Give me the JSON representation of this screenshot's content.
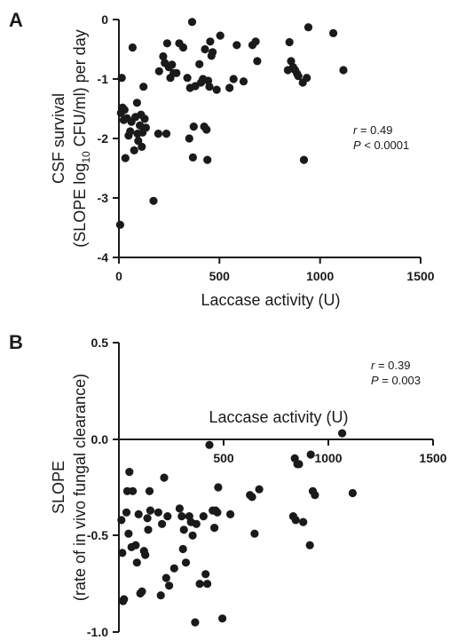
{
  "chart_data": [
    {
      "panel": "A",
      "type": "scatter",
      "xlabel": "Laccase activity (U)",
      "ylabel_line1": "CSF survival",
      "ylabel_line2_pre": "(SLOPE log",
      "ylabel_line2_sub": "10",
      "ylabel_line2_post": " CFU/ml) per day",
      "xlim": [
        0,
        1500
      ],
      "ylim": [
        -4,
        0
      ],
      "xticks": [
        "0",
        "500",
        "1000",
        "1500"
      ],
      "yticks": [
        "0",
        "-1",
        "-2",
        "-3",
        "-4"
      ],
      "stat_r_symbol": "r",
      "stat_r_value": " = 0.49",
      "stat_p_symbol": "P",
      "stat_p_value": " < 0.0001",
      "points": [
        [
          6,
          -3.45
        ],
        [
          10,
          -1.57
        ],
        [
          14,
          -0.98
        ],
        [
          18,
          -1.48
        ],
        [
          24,
          -1.69
        ],
        [
          28,
          -1.52
        ],
        [
          32,
          -2.33
        ],
        [
          40,
          -1.66
        ],
        [
          48,
          -1.95
        ],
        [
          56,
          -1.88
        ],
        [
          62,
          -1.72
        ],
        [
          68,
          -0.47
        ],
        [
          76,
          -2.2
        ],
        [
          82,
          -1.64
        ],
        [
          90,
          -1.4
        ],
        [
          92,
          -1.92
        ],
        [
          96,
          -2.04
        ],
        [
          104,
          -1.78
        ],
        [
          110,
          -1.6
        ],
        [
          114,
          -2.14
        ],
        [
          118,
          -1.9
        ],
        [
          122,
          -1.13
        ],
        [
          128,
          -1.67
        ],
        [
          134,
          -1.82
        ],
        [
          172,
          -3.05
        ],
        [
          196,
          -1.92
        ],
        [
          200,
          -0.87
        ],
        [
          220,
          -0.62
        ],
        [
          228,
          -0.73
        ],
        [
          236,
          -1.92
        ],
        [
          240,
          -0.4
        ],
        [
          248,
          -0.8
        ],
        [
          256,
          -0.98
        ],
        [
          264,
          -0.76
        ],
        [
          272,
          -0.9
        ],
        [
          286,
          -0.9
        ],
        [
          300,
          -0.4
        ],
        [
          320,
          -0.47
        ],
        [
          340,
          -0.98
        ],
        [
          350,
          -2.0
        ],
        [
          354,
          -1.15
        ],
        [
          364,
          -0.04
        ],
        [
          368,
          -2.32
        ],
        [
          372,
          -1.8
        ],
        [
          380,
          -1.12
        ],
        [
          400,
          -0.75
        ],
        [
          408,
          -1.06
        ],
        [
          418,
          -1.0
        ],
        [
          424,
          -1.8
        ],
        [
          428,
          -0.5
        ],
        [
          436,
          -1.85
        ],
        [
          440,
          -2.36
        ],
        [
          444,
          -1.03
        ],
        [
          450,
          -1.13
        ],
        [
          454,
          -0.37
        ],
        [
          460,
          -0.61
        ],
        [
          466,
          -0.55
        ],
        [
          486,
          -1.18
        ],
        [
          504,
          -0.27
        ],
        [
          550,
          -1.15
        ],
        [
          570,
          -1.0
        ],
        [
          586,
          -0.43
        ],
        [
          620,
          -1.04
        ],
        [
          664,
          -0.43
        ],
        [
          680,
          -0.37
        ],
        [
          688,
          -0.7
        ],
        [
          840,
          -0.85
        ],
        [
          848,
          -0.38
        ],
        [
          856,
          -0.7
        ],
        [
          866,
          -0.8
        ],
        [
          876,
          -0.85
        ],
        [
          886,
          -0.91
        ],
        [
          892,
          -0.95
        ],
        [
          914,
          -1.06
        ],
        [
          920,
          -2.36
        ],
        [
          934,
          -0.98
        ],
        [
          942,
          -0.13
        ],
        [
          1066,
          -0.23
        ],
        [
          1116,
          -0.85
        ]
      ]
    },
    {
      "panel": "B",
      "type": "scatter",
      "xlabel": "Laccase activity (U)",
      "ylabel_line1": "SLOPE",
      "ylabel_line2": "(rate of in vivo fungal clearance)",
      "xlim": [
        0,
        1500
      ],
      "ylim": [
        -1.0,
        0.5
      ],
      "xticks": [
        "500",
        "1000",
        "1500"
      ],
      "yticks": [
        "0.5",
        "0.0",
        "-0.5",
        "-1.0"
      ],
      "stat_r_symbol": "r",
      "stat_r_value": " = 0.39",
      "stat_p_symbol": "P",
      "stat_p_value": " = 0.003",
      "points": [
        [
          12,
          -0.42
        ],
        [
          16,
          -0.59
        ],
        [
          20,
          -0.84
        ],
        [
          24,
          -0.83
        ],
        [
          36,
          -0.38
        ],
        [
          40,
          -0.27
        ],
        [
          46,
          -0.49
        ],
        [
          50,
          -0.17
        ],
        [
          60,
          -0.56
        ],
        [
          66,
          -0.27
        ],
        [
          80,
          -0.55
        ],
        [
          86,
          -0.64
        ],
        [
          94,
          -0.39
        ],
        [
          102,
          -0.8
        ],
        [
          110,
          -0.79
        ],
        [
          120,
          -0.58
        ],
        [
          126,
          -0.6
        ],
        [
          136,
          -0.41
        ],
        [
          140,
          -0.47
        ],
        [
          146,
          -0.27
        ],
        [
          150,
          -0.37
        ],
        [
          188,
          -0.38
        ],
        [
          200,
          -0.81
        ],
        [
          206,
          -0.44
        ],
        [
          216,
          -0.2
        ],
        [
          226,
          -0.72
        ],
        [
          232,
          -0.4
        ],
        [
          240,
          -0.76
        ],
        [
          264,
          -0.67
        ],
        [
          290,
          -0.36
        ],
        [
          300,
          -0.4
        ],
        [
          306,
          -0.57
        ],
        [
          310,
          -0.47
        ],
        [
          320,
          -0.64
        ],
        [
          336,
          -0.4
        ],
        [
          344,
          -0.43
        ],
        [
          352,
          -0.5
        ],
        [
          364,
          -0.95
        ],
        [
          370,
          -0.44
        ],
        [
          386,
          -0.75
        ],
        [
          404,
          -0.4
        ],
        [
          414,
          -0.7
        ],
        [
          422,
          -0.75
        ],
        [
          432,
          -0.03
        ],
        [
          448,
          -0.37
        ],
        [
          456,
          -0.46
        ],
        [
          462,
          -0.37
        ],
        [
          470,
          -0.38
        ],
        [
          474,
          -0.25
        ],
        [
          494,
          -0.93
        ],
        [
          532,
          -0.39
        ],
        [
          626,
          -0.29
        ],
        [
          636,
          -0.3
        ],
        [
          648,
          -0.49
        ],
        [
          670,
          -0.26
        ],
        [
          832,
          -0.4
        ],
        [
          840,
          -0.1
        ],
        [
          844,
          -0.42
        ],
        [
          852,
          -0.13
        ],
        [
          860,
          -0.13
        ],
        [
          880,
          -0.43
        ],
        [
          912,
          -0.55
        ],
        [
          916,
          -0.08
        ],
        [
          926,
          -0.27
        ],
        [
          936,
          -0.29
        ],
        [
          1066,
          0.03
        ],
        [
          1116,
          -0.28
        ]
      ]
    }
  ]
}
